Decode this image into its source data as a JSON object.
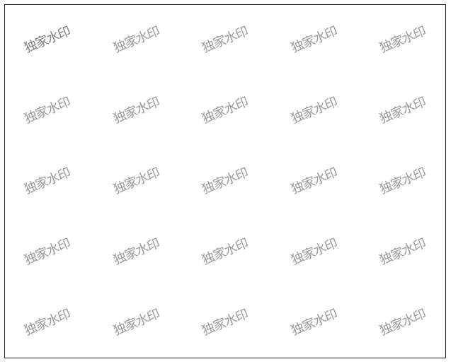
{
  "watermark": {
    "text": "独家水印",
    "color": "#9a9a9a",
    "rows": 5,
    "cols": 5
  },
  "canvas": {
    "background": "#ffffff",
    "border_color": "#222222"
  }
}
